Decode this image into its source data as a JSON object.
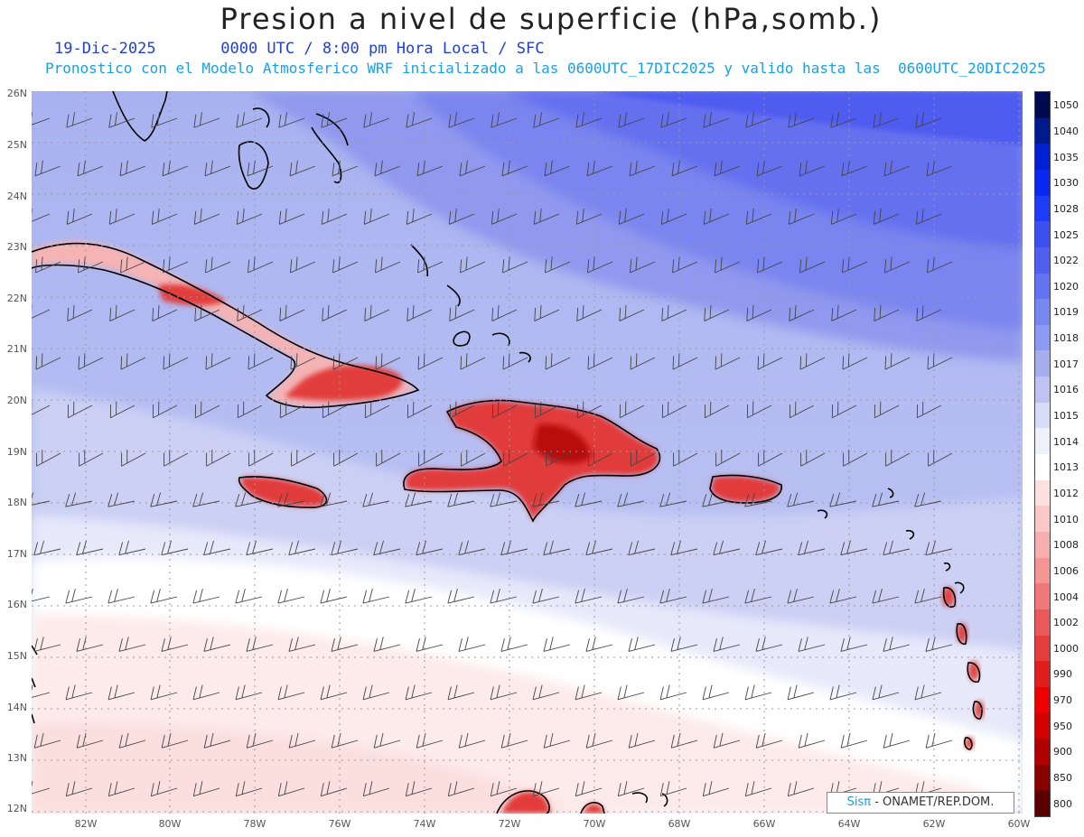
{
  "title": "Presion a nivel de superficie (hPa,somb.)",
  "subtitle_date": "19-Dic-2025",
  "subtitle_time": "0000 UTC / 8:00 pm Hora Local / SFC",
  "subtitle_forecast": "Pronostico con el Modelo Atmosferico WRF inicializado a las 0600UTC_17DIC2025 y valido hasta las  0600UTC_20DIC2025",
  "lat_labels": [
    "26N",
    "25N",
    "24N",
    "23N",
    "22N",
    "21N",
    "20N",
    "19N",
    "18N",
    "17N",
    "16N",
    "15N",
    "14N",
    "13N",
    "12N"
  ],
  "lon_labels": [
    "82W",
    "80W",
    "78W",
    "76W",
    "74W",
    "72W",
    "70W",
    "68W",
    "66W",
    "64W",
    "62W",
    "60W"
  ],
  "colorbar": {
    "levels": [
      "1050",
      "1040",
      "1035",
      "1030",
      "1028",
      "1025",
      "1022",
      "1020",
      "1019",
      "1018",
      "1017",
      "1016",
      "1015",
      "1014",
      "1013",
      "1012",
      "1010",
      "1008",
      "1006",
      "1004",
      "1002",
      "1000",
      "990",
      "970",
      "950",
      "900",
      "850",
      "800"
    ],
    "colors": [
      "#000a50",
      "#00198c",
      "#0020d2",
      "#0a28f0",
      "#1e3cf5",
      "#3c50f0",
      "#505ff0",
      "#6473f0",
      "#7887f0",
      "#8c9bf2",
      "#a5afee",
      "#bec3f2",
      "#d7dcf8",
      "#eef0fc",
      "#ffffff",
      "#fde0e0",
      "#fbc8c8",
      "#f8aeae",
      "#f59696",
      "#f07878",
      "#ea5a5a",
      "#e53c3c",
      "#e01e1e",
      "#ee0000",
      "#d40000",
      "#b00000",
      "#880000",
      "#5a0000"
    ]
  },
  "credit_brand": "Sisπ",
  "credit_text": " - ONAMET/REP.DOM."
}
